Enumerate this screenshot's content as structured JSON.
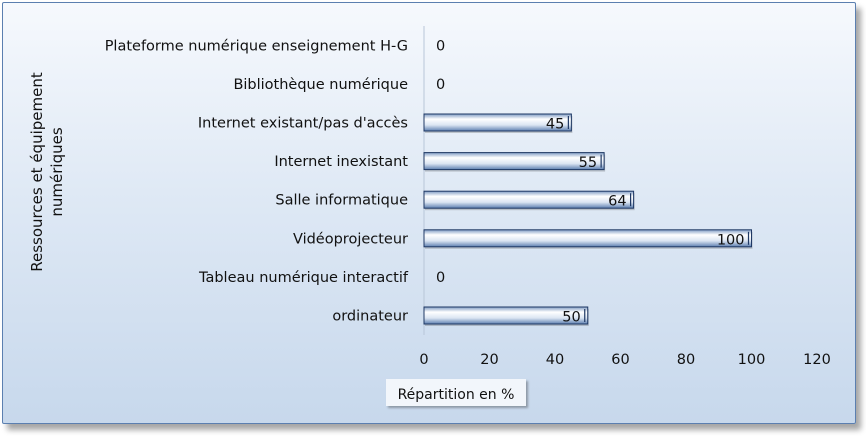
{
  "chart_data": {
    "type": "bar",
    "orientation": "horizontal",
    "categories": [
      "Plateforme numérique enseignement H-G",
      "Bibliothèque numérique",
      "Internet existant/pas d'accès",
      "Internet inexistant",
      "Salle  informatique",
      "Vidéoprojecteur",
      "Tableau numérique interactif",
      "ordinateur"
    ],
    "values": [
      0,
      0,
      45,
      55,
      64,
      100,
      0,
      50
    ],
    "data_labels": [
      "0",
      "0",
      "45",
      "55",
      "64",
      "100",
      "0",
      "50"
    ],
    "xlabel": "Répartition en %",
    "ylabel_lines": [
      "Ressources et équipement",
      "numériques"
    ],
    "xlim": [
      0,
      120
    ],
    "xticks": [
      0,
      20,
      40,
      60,
      80,
      100,
      120
    ],
    "grid": false,
    "legend": "none",
    "colors": {
      "bar_fill": "#dce6f2",
      "bar_edge": "#1f3864",
      "axis": "#a6b6cc"
    }
  }
}
